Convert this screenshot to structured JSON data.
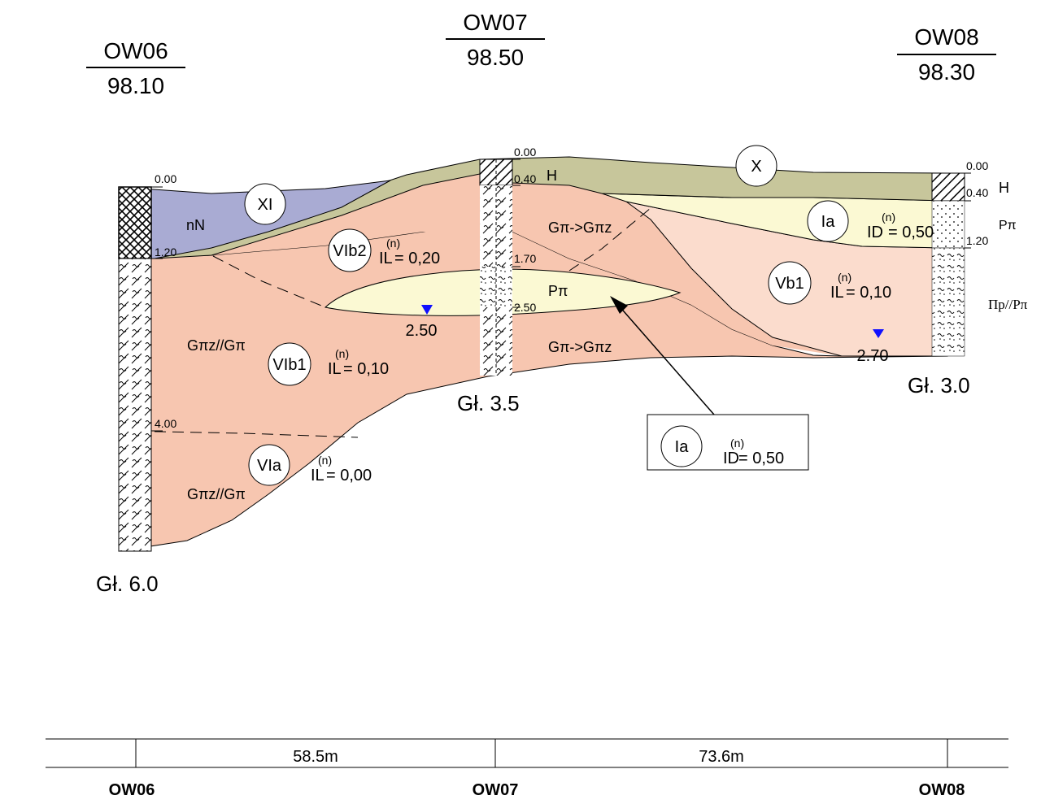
{
  "wells": [
    {
      "id": "OW06",
      "elevation": "98.10",
      "depth_label": "Gł. 6.0",
      "bottom_label": "OW06"
    },
    {
      "id": "OW07",
      "elevation": "98.50",
      "depth_label": "Gł. 3.5",
      "bottom_label": "OW07"
    },
    {
      "id": "OW08",
      "elevation": "98.30",
      "depth_label": "Gł. 3.0",
      "bottom_label": "OW08"
    }
  ],
  "depth_marks": {
    "ow06_top": "0.00",
    "ow06_120": "1.20",
    "ow06_400": "4.00",
    "ow07_top": "0.00",
    "ow07_040": "0.40",
    "ow07_170": "1.70",
    "ow07_250": "2.50",
    "ow08_top": "0.00",
    "ow08_040": "0.40",
    "ow08_120": "1.20"
  },
  "layer_codes": {
    "ow07_top": "H",
    "ow08_top": "H",
    "ow08_mid": "Pπ",
    "ow08_low": "Πp//Pπ",
    "nN": "nN",
    "vib2_soil": "Gπ->Gπz",
    "lens_soil": "Pπ",
    "vib_lower_soil": "Gπ->Gπz",
    "vib1_soil": "Gπz//Gπ",
    "via_soil": "Gπz//Gπ"
  },
  "layers": [
    {
      "id": "XI",
      "param": "",
      "value": ""
    },
    {
      "id": "X",
      "param": "",
      "value": ""
    },
    {
      "id": "Ia",
      "param": "ID",
      "sup": "(n)",
      "value": "= 0,50"
    },
    {
      "id": "VIb2",
      "param": "IL",
      "sup": "(n)",
      "value": "= 0,20"
    },
    {
      "id": "Vb1",
      "param": "IL",
      "sup": "(n)",
      "value": "= 0,10"
    },
    {
      "id": "VIb1",
      "param": "IL",
      "sup": "(n)",
      "value": "= 0,10"
    },
    {
      "id": "VIa",
      "param": "IL",
      "sup": "(n)",
      "value": "= 0,00"
    }
  ],
  "callout": {
    "id": "Ia",
    "param": "ID",
    "sup": "(n)",
    "value": "= 0,50"
  },
  "water_levels": {
    "ow07": "2.50",
    "ow08": "2.70"
  },
  "distances": {
    "ow06_ow07": "58.5m",
    "ow07_ow08": "73.6m"
  },
  "colors": {
    "organic_soil": "#a9abd3",
    "topsoil": "#c7c69b",
    "sand": "#fbf9d3",
    "clay": "#f7c6b0",
    "clay_light": "#fbdccd",
    "water_marker": "#1010ff"
  }
}
